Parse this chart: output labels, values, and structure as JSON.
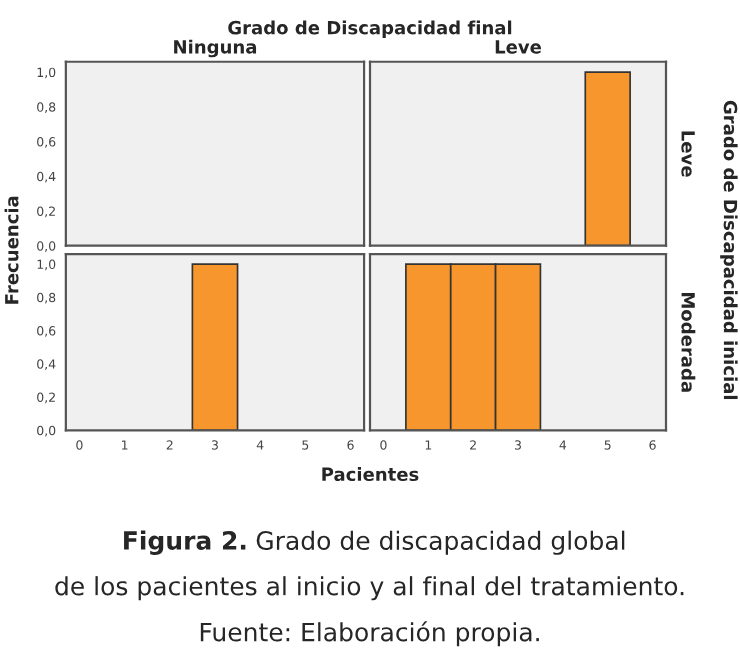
{
  "chart_data": [
    {
      "type": "histogram",
      "title": "Ninguna",
      "tick_labels": "y",
      "xlim": [
        -0.3,
        6.3
      ],
      "xticks": [
        0,
        1,
        2,
        3,
        4,
        5,
        6
      ],
      "ylim": [
        0,
        1.06
      ],
      "yticks": [
        {
          "value": 0,
          "label": "0,0"
        },
        {
          "value": 0.2,
          "label": "0,2"
        },
        {
          "value": 0.4,
          "label": "0,4"
        },
        {
          "value": 0.6,
          "label": "0,6"
        },
        {
          "value": 0.8,
          "label": "0,8"
        },
        {
          "value": 1,
          "label": "1,0"
        }
      ]
    },
    {
      "type": "histogram",
      "title": "Leve",
      "y2label": "Leve",
      "tick_labels": false,
      "bins": [
        -0.5,
        0.5,
        1.5,
        2.5,
        3.5,
        4.5,
        5.5,
        6.5
      ],
      "values": [
        0,
        0,
        0,
        0,
        0,
        1,
        0
      ],
      "color": "#f7962d",
      "xlim": [
        -0.3,
        6.3
      ],
      "xticks": [
        0,
        1,
        2,
        3,
        4,
        5,
        6
      ],
      "ylim": [
        0,
        1.06
      ],
      "yticks": [
        {
          "value": 0,
          "label": null
        },
        {
          "value": 0.2,
          "label": null
        },
        {
          "value": 0.4,
          "label": null
        },
        {
          "value": 0.6,
          "label": null
        },
        {
          "value": 0.8,
          "label": null
        },
        {
          "value": 1,
          "label": null
        }
      ]
    },
    {
      "type": "histogram",
      "bins": [
        -0.5,
        0.5,
        1.5,
        2.5,
        3.5,
        4.5,
        5.5,
        6.5
      ],
      "values": [
        0,
        0,
        0,
        1,
        0,
        0,
        0
      ],
      "color": "#f7962d",
      "xlim": [
        -0.3,
        6.3
      ],
      "xticks": [
        0,
        1,
        2,
        3,
        4,
        5,
        6
      ],
      "ylim": [
        0,
        1.06
      ],
      "yticks": [
        {
          "value": 0,
          "label": "0,0"
        },
        {
          "value": 0.2,
          "label": "0,2"
        },
        {
          "value": 0.4,
          "label": "0,4"
        },
        {
          "value": 0.6,
          "label": "0,6"
        },
        {
          "value": 0.8,
          "label": "0,8"
        },
        {
          "value": 1,
          "label": "1,0"
        }
      ]
    },
    {
      "type": "histogram",
      "y2label": "Moderada",
      "tick_labels": "x",
      "bins": [
        -0.5,
        0.5,
        1.5,
        2.5,
        3.5,
        4.5,
        5.5,
        6.5
      ],
      "values": [
        0,
        1,
        1,
        1,
        0,
        0,
        0
      ],
      "color": "#f7962d",
      "xlim": [
        -0.3,
        6.3
      ],
      "xticks": [
        0,
        1,
        2,
        3,
        4,
        5,
        6
      ],
      "ylim": [
        0,
        1.06
      ],
      "yticks": [
        {
          "value": 0,
          "label": null
        },
        {
          "value": 0.2,
          "label": null
        },
        {
          "value": 0.4,
          "label": null
        },
        {
          "value": 0.6,
          "label": null
        },
        {
          "value": 0.8,
          "label": null
        },
        {
          "value": 1,
          "label": null
        }
      ]
    },
    {
      "type": "other",
      "title": "Grado de Discapacidad final",
      "xlabel": "Pacientes",
      "ylabel": "Frecuencia",
      "y2label": "Grado de Discapacidad inicial",
      "annotations": [
        "Figura 2.",
        "Grado de discapacidad global",
        "de los pacientes al inicio y al final del tratamiento.",
        "Fuente: Elaboración propia."
      ]
    }
  ]
}
